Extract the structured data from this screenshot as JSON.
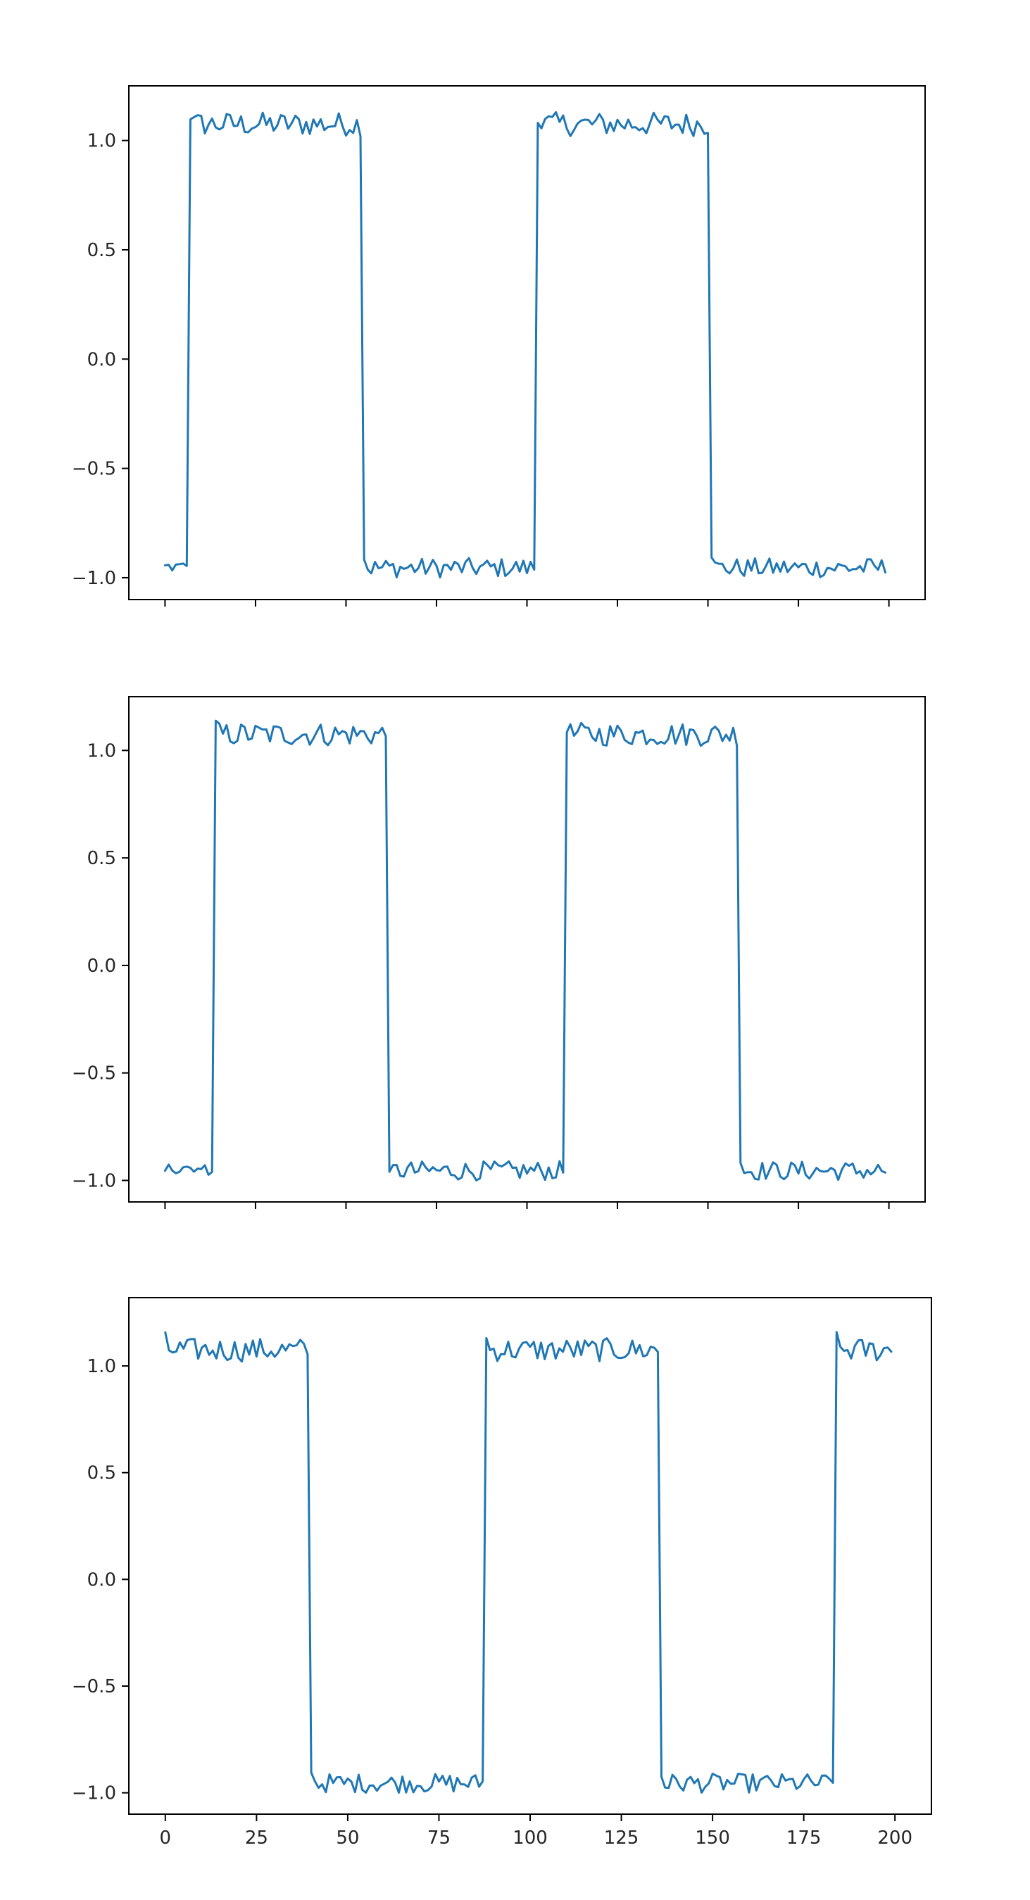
{
  "chart_data": [
    {
      "type": "line",
      "series_color": "#1f77b4",
      "xlim": [
        -10,
        210
      ],
      "ylim": [
        -1.1,
        1.25
      ],
      "yticks": [
        1.0,
        0.5,
        0.0,
        -0.5,
        -1.0
      ],
      "ytick_labels": [
        "1.0",
        "0.5",
        "0.0",
        "−0.5",
        "−1.0"
      ],
      "xticks": [
        0,
        25,
        50,
        75,
        100,
        125,
        150,
        175,
        200
      ],
      "xtick_labels": [],
      "grid": false,
      "segments": [
        {
          "x0": 0,
          "x1": 6,
          "level": -1,
          "noise": "light"
        },
        {
          "x0": 7,
          "x1": 54,
          "level": 1
        },
        {
          "x0": 55,
          "x1": 102,
          "level": -1
        },
        {
          "x0": 103,
          "x1": 150,
          "level": 1
        },
        {
          "x0": 151,
          "x1": 199,
          "level": -1
        }
      ]
    },
    {
      "type": "line",
      "series_color": "#1f77b4",
      "xlim": [
        -10,
        210
      ],
      "ylim": [
        -1.1,
        1.25
      ],
      "yticks": [
        1.0,
        0.5,
        0.0,
        -0.5,
        -1.0
      ],
      "ytick_labels": [
        "1.0",
        "0.5",
        "0.0",
        "−0.5",
        "−1.0"
      ],
      "xticks": [
        0,
        25,
        50,
        75,
        100,
        125,
        150,
        175,
        200
      ],
      "xtick_labels": [],
      "grid": false,
      "segments": [
        {
          "x0": 0,
          "x1": 13,
          "level": -1,
          "noise": "light"
        },
        {
          "x0": 14,
          "x1": 61,
          "level": 1
        },
        {
          "x0": 62,
          "x1": 110,
          "level": -1
        },
        {
          "x0": 111,
          "x1": 158,
          "level": 1
        },
        {
          "x0": 159,
          "x1": 199,
          "level": -1
        }
      ]
    },
    {
      "type": "line",
      "series_color": "#1f77b4",
      "xlim": [
        -10,
        210
      ],
      "ylim": [
        -1.1,
        1.32
      ],
      "yticks": [
        1.0,
        0.5,
        0.0,
        -0.5,
        -1.0
      ],
      "ytick_labels": [
        "1.0",
        "0.5",
        "0.0",
        "−0.5",
        "−1.0"
      ],
      "xticks": [
        0,
        25,
        50,
        75,
        100,
        125,
        150,
        175,
        200
      ],
      "xtick_labels": [
        "0",
        "25",
        "50",
        "75",
        "100",
        "125",
        "150",
        "175",
        "200"
      ],
      "grid": false,
      "segments": [
        {
          "x0": 0,
          "x1": 39,
          "level": 1
        },
        {
          "x0": 40,
          "x1": 87,
          "level": -1
        },
        {
          "x0": 88,
          "x1": 135,
          "level": 1
        },
        {
          "x0": 136,
          "x1": 183,
          "level": -1
        },
        {
          "x0": 184,
          "x1": 199,
          "level": 1
        }
      ]
    }
  ]
}
